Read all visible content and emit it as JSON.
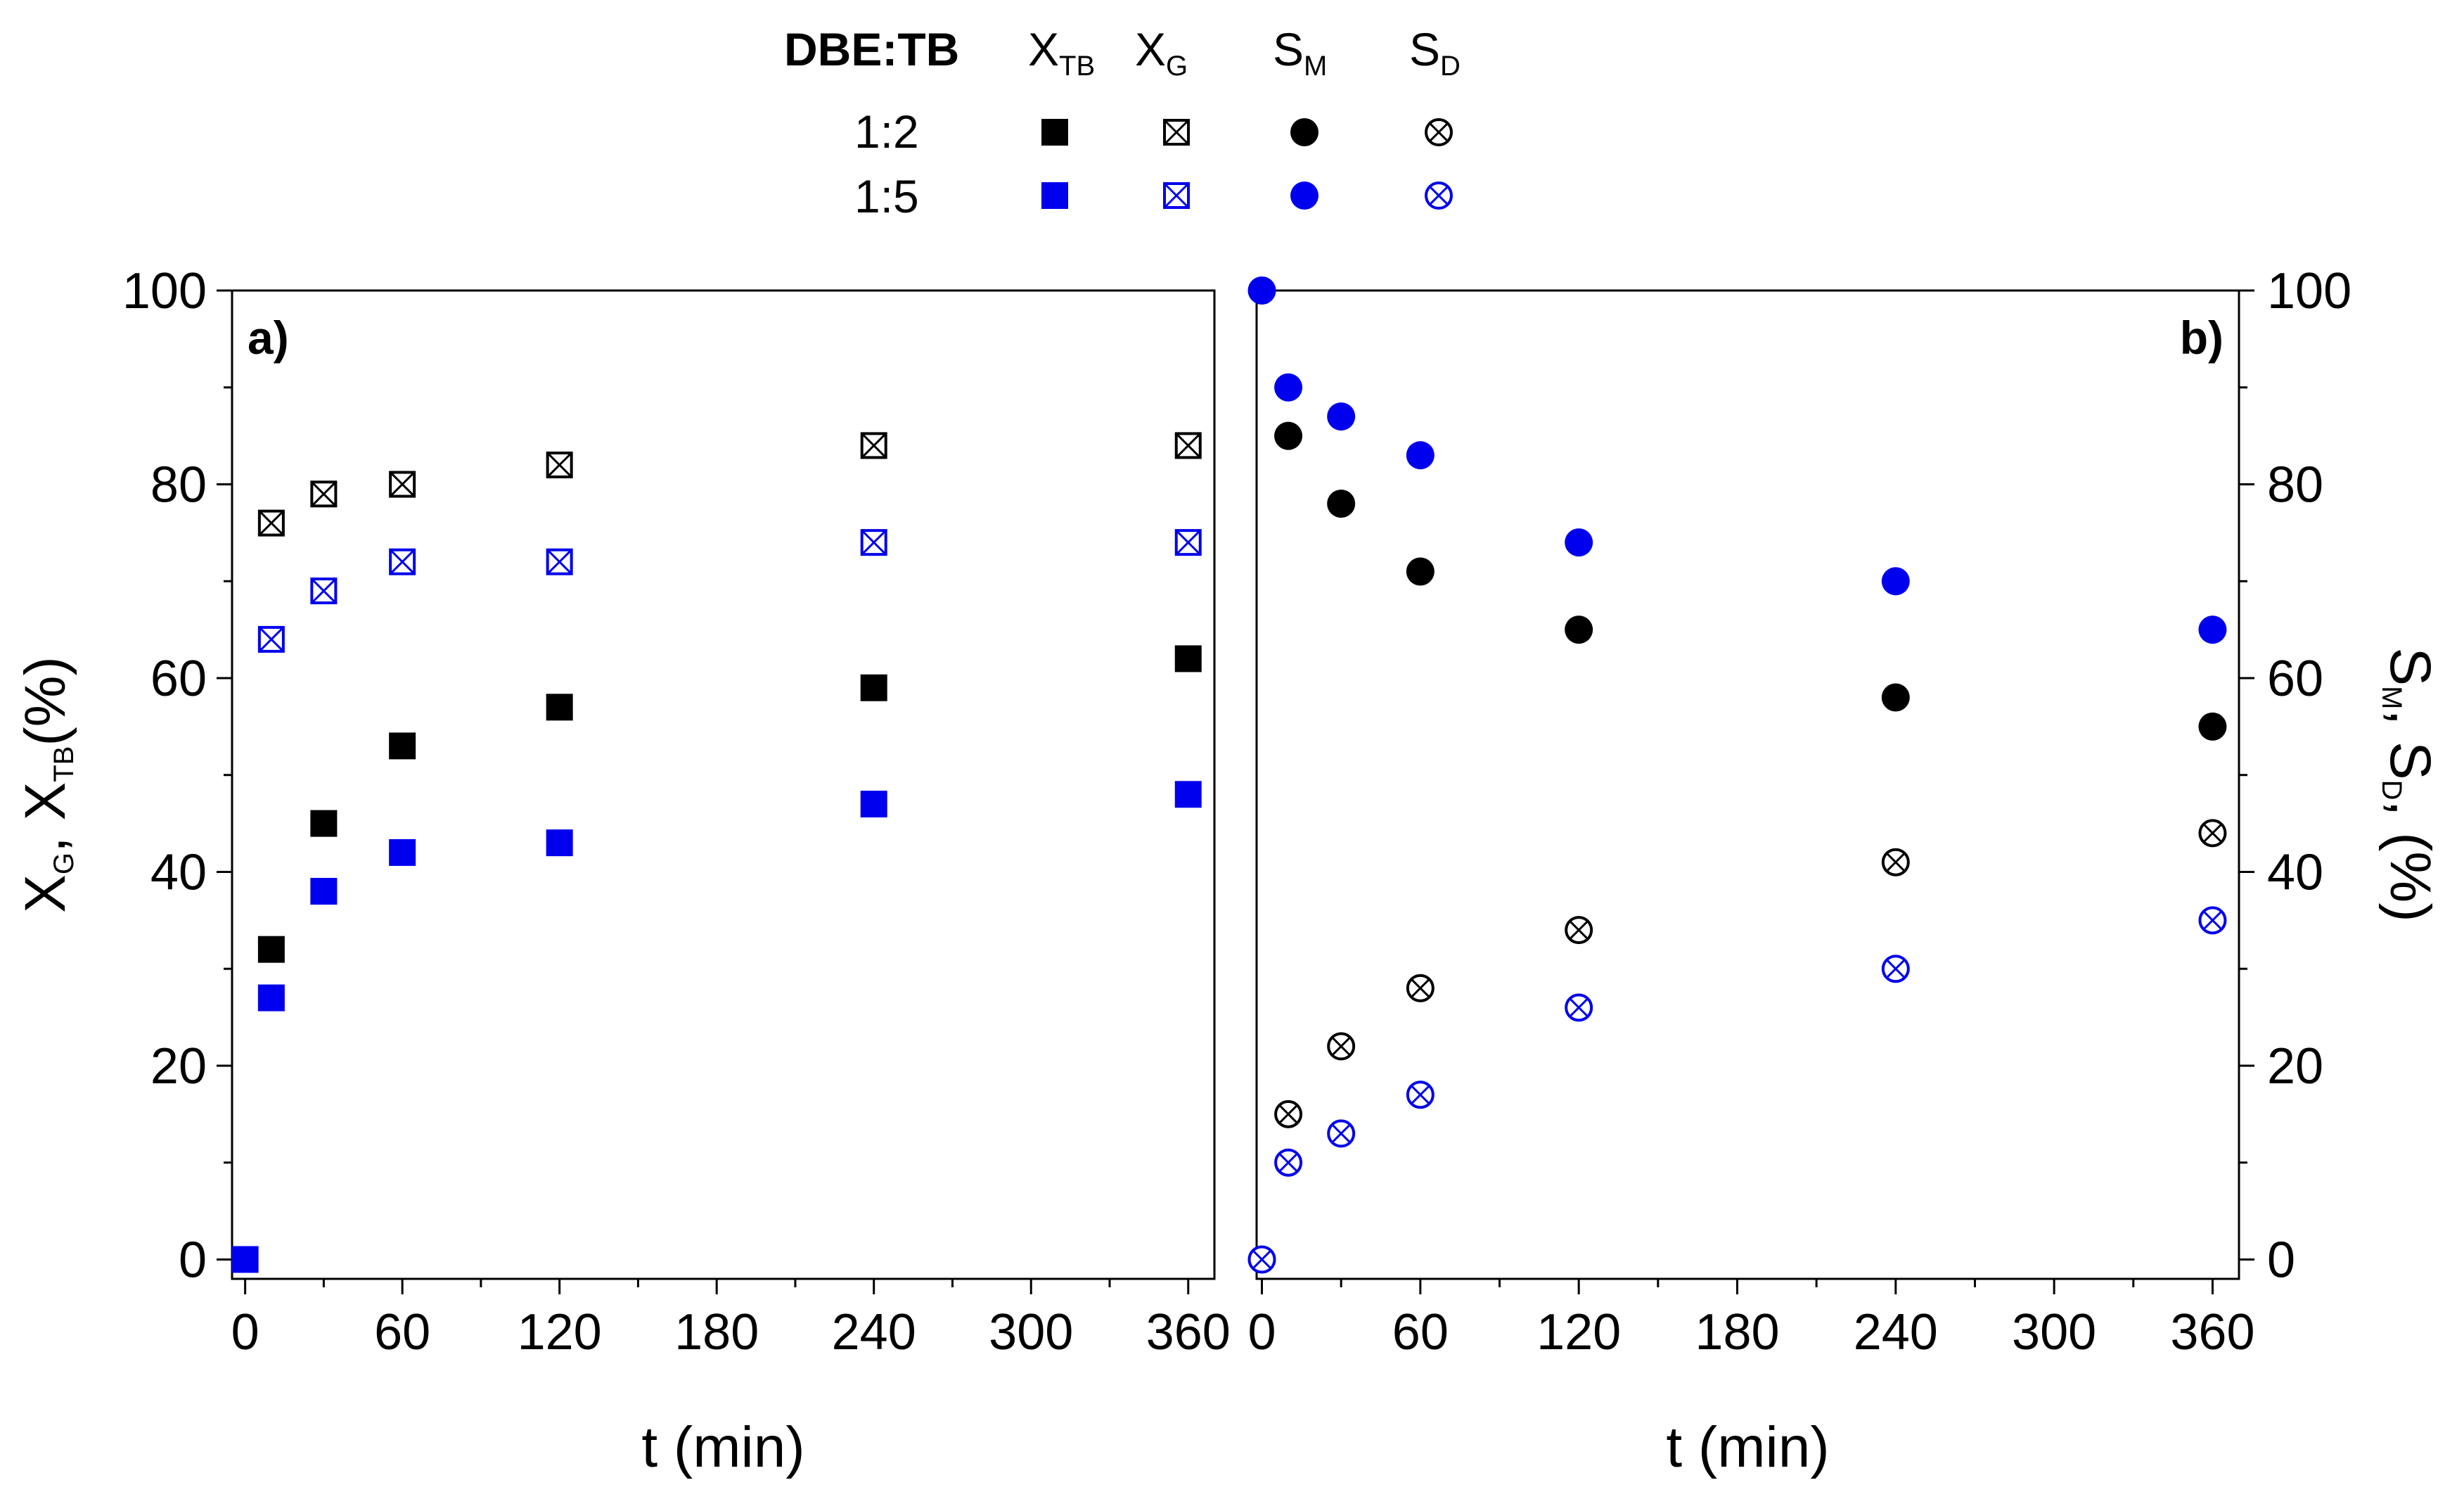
{
  "colors": {
    "black": "#000000",
    "blue": "#0000ee",
    "background": "#ffffff"
  },
  "legend": {
    "title": "DBE:TB",
    "columns": [
      {
        "main": "X",
        "sub": "TB"
      },
      {
        "main": "X",
        "sub": "G"
      },
      {
        "main": "S",
        "sub": "M"
      },
      {
        "main": "S",
        "sub": "D"
      }
    ],
    "rows": [
      {
        "label": "1:2",
        "color": "black"
      },
      {
        "label": "1:5",
        "color": "blue"
      }
    ]
  },
  "chart_data": [
    {
      "panel": "a)",
      "type": "scatter",
      "xlabel": "t (min)",
      "ylabel": {
        "prefix": "X",
        "sub1": "G",
        "sep": ", X",
        "sub2": "TB",
        "suffix": "(%)"
      },
      "xlim": [
        -5,
        370
      ],
      "ylim": [
        -2,
        100
      ],
      "xticks": [
        0,
        60,
        120,
        180,
        240,
        300,
        360
      ],
      "yticks": [
        0,
        20,
        40,
        60,
        80,
        100
      ],
      "y_axis_side": "left",
      "series": [
        {
          "name": "X_TB 1:2",
          "marker": "square-filled",
          "color": "black",
          "x": [
            10,
            30,
            60,
            120,
            240,
            360
          ],
          "y": [
            32,
            45,
            53,
            57,
            59,
            62
          ]
        },
        {
          "name": "X_TB 1:5",
          "marker": "square-filled",
          "color": "blue",
          "x": [
            0,
            10,
            30,
            60,
            120,
            240,
            360
          ],
          "y": [
            0,
            27,
            38,
            42,
            43,
            47,
            48
          ]
        },
        {
          "name": "X_G 1:2",
          "marker": "square-cross",
          "color": "black",
          "x": [
            10,
            30,
            60,
            120,
            240,
            360
          ],
          "y": [
            76,
            79,
            80,
            82,
            84,
            84
          ]
        },
        {
          "name": "X_G 1:5",
          "marker": "square-cross",
          "color": "blue",
          "x": [
            10,
            30,
            60,
            120,
            240,
            360
          ],
          "y": [
            64,
            69,
            72,
            72,
            74,
            74
          ]
        }
      ]
    },
    {
      "panel": "b)",
      "type": "scatter",
      "xlabel": "t (min)",
      "ylabel": {
        "prefix": "S",
        "sub1": "M",
        "sep": ", S",
        "sub2": "D",
        "suffix": ", (%)"
      },
      "xlim": [
        -2,
        370
      ],
      "ylim": [
        -2,
        100
      ],
      "xticks": [
        0,
        60,
        120,
        180,
        240,
        300,
        360
      ],
      "yticks": [
        0,
        20,
        40,
        60,
        80,
        100
      ],
      "y_axis_side": "right",
      "series": [
        {
          "name": "S_M 1:2",
          "marker": "circle-filled",
          "color": "black",
          "x": [
            10,
            30,
            60,
            120,
            240,
            360
          ],
          "y": [
            85,
            78,
            71,
            65,
            58,
            55
          ]
        },
        {
          "name": "S_M 1:5",
          "marker": "circle-filled",
          "color": "blue",
          "x": [
            0,
            10,
            30,
            60,
            120,
            240,
            360
          ],
          "y": [
            100,
            90,
            87,
            83,
            74,
            70,
            65
          ]
        },
        {
          "name": "S_D 1:2",
          "marker": "circle-cross",
          "color": "black",
          "x": [
            10,
            30,
            60,
            120,
            240,
            360
          ],
          "y": [
            15,
            22,
            28,
            34,
            41,
            44
          ]
        },
        {
          "name": "S_D 1:5",
          "marker": "circle-cross",
          "color": "blue",
          "x": [
            0,
            10,
            30,
            60,
            120,
            240,
            360
          ],
          "y": [
            0,
            10,
            13,
            17,
            26,
            30,
            35
          ]
        }
      ]
    }
  ]
}
